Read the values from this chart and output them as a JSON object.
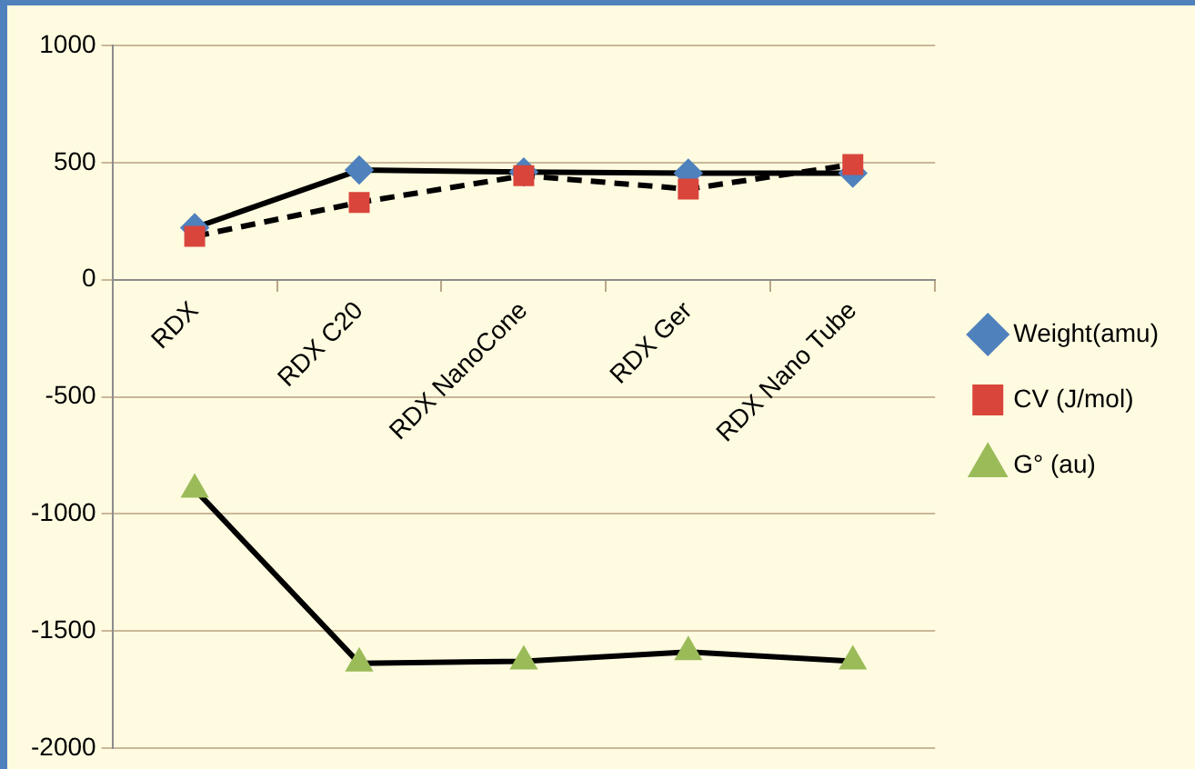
{
  "chart_data": {
    "type": "line",
    "categories": [
      "RDX",
      "RDX C20",
      "RDX NanoCone",
      "RDX Ger",
      "RDX Nano Tube"
    ],
    "series": [
      {
        "name": "Weight(amu)",
        "color": "#4f81bd",
        "marker": "diamond",
        "line_style": "solid",
        "values": [
          222,
          468,
          460,
          455,
          455
        ]
      },
      {
        "name": "CV (J/mol)",
        "color": "#d9453b",
        "marker": "square",
        "line_style": "dashed",
        "values": [
          185,
          330,
          444,
          387,
          492
        ]
      },
      {
        "name": "G° (au)",
        "color": "#9bbb59",
        "marker": "triangle",
        "line_style": "solid",
        "values": [
          -895,
          -1637,
          -1629,
          -1589,
          -1629
        ]
      }
    ],
    "ylim": [
      -2000,
      1000
    ],
    "yticks": [
      -2000,
      -1500,
      -1000,
      -500,
      0,
      500,
      1000
    ],
    "grid": "y",
    "legend": "right"
  }
}
